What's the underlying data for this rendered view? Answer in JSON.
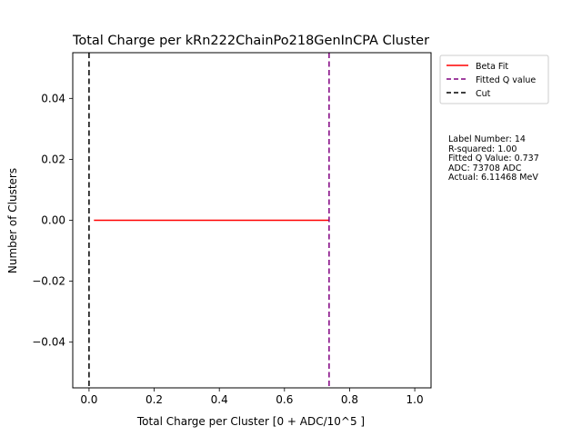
{
  "chart_data": {
    "type": "line",
    "title": "Total Charge per kRn222ChainPo218GenInCPA Cluster",
    "xlabel": "Total Charge per Cluster [0 + ADC/10^5 ]",
    "ylabel": "Number of Clusters",
    "xlim": [
      -0.05,
      1.05
    ],
    "ylim": [
      -0.055,
      0.055
    ],
    "xticks": [
      0.0,
      0.2,
      0.4,
      0.6,
      0.8,
      1.0
    ],
    "xtick_labels": [
      "0.0",
      "0.2",
      "0.4",
      "0.6",
      "0.8",
      "1.0"
    ],
    "yticks": [
      -0.04,
      -0.02,
      0.0,
      0.02,
      0.04
    ],
    "ytick_labels": [
      "−0.04",
      "−0.02",
      "0.00",
      "0.02",
      "0.04"
    ],
    "grid": false,
    "legend_position": "upper-right-outside",
    "series": [
      {
        "name": "Beta Fit",
        "color": "#ff0000",
        "style": "solid",
        "x": [
          0.015,
          0.737
        ],
        "y": [
          0,
          0
        ]
      }
    ],
    "vlines": [
      {
        "name": "Fitted Q value",
        "color": "#800080",
        "style": "dashed",
        "x": 0.737
      },
      {
        "name": "Cut",
        "color": "#000000",
        "style": "dashed",
        "x": 0.0
      }
    ],
    "annotation": [
      "Label Number: 14",
      "R-squared: 1.00",
      "Fitted Q Value: 0.737",
      "ADC: 73708 ADC",
      "Actual: 6.11468 MeV"
    ]
  }
}
